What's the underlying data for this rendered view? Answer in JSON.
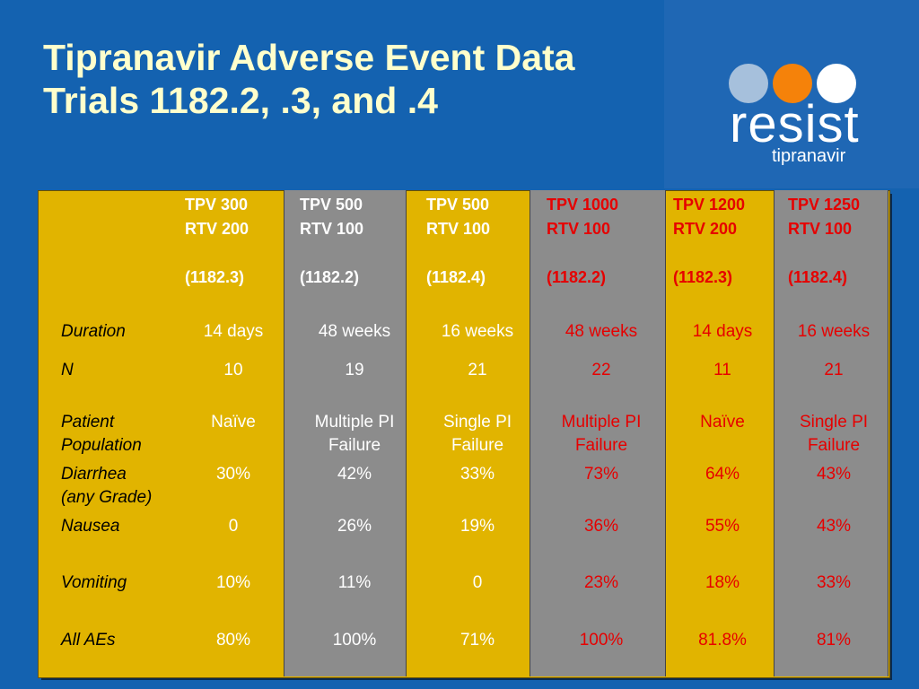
{
  "title": {
    "line1": "Tipranavir Adverse Event Data",
    "line2": "Trials 1182.2, .3, and .4"
  },
  "logo": {
    "wordmark": "resist",
    "subtitle": "tipranavir",
    "dot_colors": [
      "#a6c0dc",
      "#f5820a",
      "#ffffff"
    ]
  },
  "colors": {
    "title": "#ffffcc",
    "background": "#1462b0",
    "table_gold": "#e1b400",
    "table_gray": "#8c8c8c",
    "highlight_red": "#e60000"
  },
  "row_labels": {
    "duration": "Duration",
    "n": "N",
    "patient_pop_1": "Patient",
    "patient_pop_2": "Population",
    "diarrhea_1": "Diarrhea",
    "diarrhea_2": "(any Grade)",
    "nausea": "Nausea",
    "vomiting": "Vomiting",
    "all_aes": "All AEs"
  },
  "columns": [
    {
      "tpv": "TPV 300",
      "rtv": "RTV 200",
      "trial": "(1182.3)",
      "duration": "14 days",
      "n": "10",
      "pop1": "Naïve",
      "pop2": "",
      "diarrhea": "30%",
      "nausea": "0",
      "vomiting": "10%",
      "all_aes": "80%"
    },
    {
      "tpv": "TPV 500",
      "rtv": "RTV 100",
      "trial": "(1182.2)",
      "duration": "48 weeks",
      "n": "19",
      "pop1": "Multiple PI",
      "pop2": "Failure",
      "diarrhea": "42%",
      "nausea": "26%",
      "vomiting": "11%",
      "all_aes": "100%"
    },
    {
      "tpv": "TPV 500",
      "rtv": "RTV 100",
      "trial": "(1182.4)",
      "duration": "16 weeks",
      "n": "21",
      "pop1": "Single PI",
      "pop2": "Failure",
      "diarrhea": "33%",
      "nausea": "19%",
      "vomiting": "0",
      "all_aes": "71%"
    },
    {
      "tpv": "TPV 1000",
      "rtv": "RTV 100",
      "trial": "(1182.2)",
      "duration": "48 weeks",
      "n": "22",
      "pop1": "Multiple PI",
      "pop2": "Failure",
      "diarrhea": "73%",
      "nausea": "36%",
      "vomiting": "23%",
      "all_aes": "100%"
    },
    {
      "tpv": "TPV 1200",
      "rtv": "RTV 200",
      "trial": "(1182.3)",
      "duration": "14 days",
      "n": "11",
      "pop1": "Naïve",
      "pop2": "",
      "diarrhea": "64%",
      "nausea": "55%",
      "vomiting": "18%",
      "all_aes": "81.8%"
    },
    {
      "tpv": "TPV 1250",
      "rtv": "RTV 100",
      "trial": "(1182.4)",
      "duration": "16 weeks",
      "n": "21",
      "pop1": "Single PI",
      "pop2": "Failure",
      "diarrhea": "43%",
      "nausea": "43%",
      "vomiting": "33%",
      "all_aes": "81%"
    }
  ]
}
